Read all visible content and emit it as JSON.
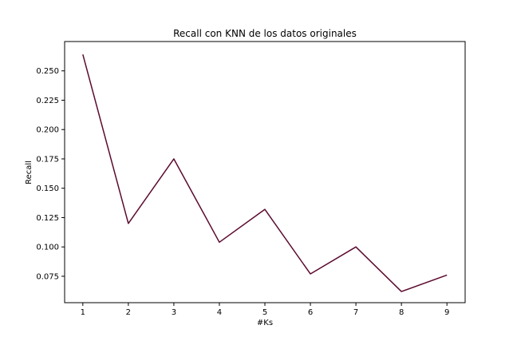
{
  "chart_data": {
    "type": "line",
    "title": "Recall con KNN de los datos originales",
    "xlabel": "#Ks",
    "ylabel": "Recall",
    "x": [
      1,
      2,
      3,
      4,
      5,
      6,
      7,
      8,
      9
    ],
    "xticks": [
      "1",
      "2",
      "3",
      "4",
      "5",
      "6",
      "7",
      "8",
      "9"
    ],
    "yticks": [
      "0.075",
      "0.100",
      "0.125",
      "0.150",
      "0.175",
      "0.200",
      "0.225",
      "0.250"
    ],
    "xlim": [
      0.6,
      9.4
    ],
    "ylim": [
      0.0525,
      0.275
    ],
    "series": [
      {
        "values": [
          0.264,
          0.12,
          0.175,
          0.104,
          0.132,
          0.077,
          0.1,
          0.062,
          0.076
        ],
        "color": "#5c0a2e"
      }
    ],
    "grid": false,
    "legend": "none"
  }
}
